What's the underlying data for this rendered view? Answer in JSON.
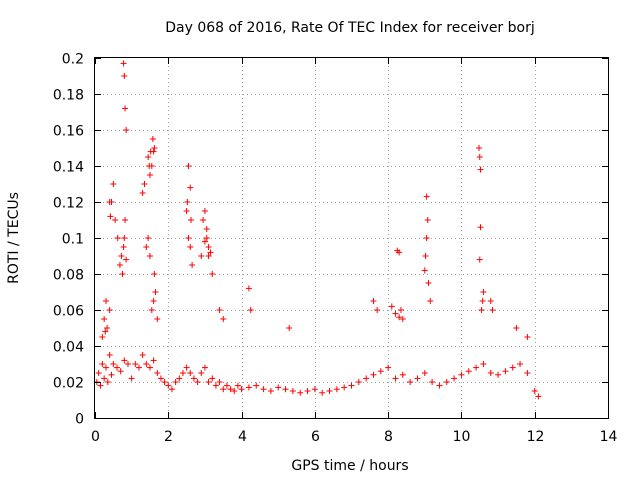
{
  "chart_data": {
    "type": "scatter",
    "title": "Day 068 of 2016, Rate Of TEC Index for receiver borj",
    "xlabel": "GPS time / hours",
    "ylabel": "ROTI / TECUs",
    "xlim": [
      0,
      14
    ],
    "ylim": [
      0,
      0.2
    ],
    "xticks": [
      "0",
      "2",
      "4",
      "6",
      "8",
      "10",
      "12",
      "14"
    ],
    "yticks": [
      "0",
      "0.02",
      "0.04",
      "0.06",
      "0.08",
      "0.1",
      "0.12",
      "0.14",
      "0.16",
      "0.18",
      "0.2"
    ],
    "grid": true,
    "marker": "+",
    "color": "#ff0000",
    "series": [
      {
        "name": "ROTI",
        "x": [
          0.05,
          0.1,
          0.15,
          0.2,
          0.25,
          0.3,
          0.35,
          0.4,
          0.45,
          0.5,
          0.6,
          0.7,
          0.8,
          0.9,
          1.0,
          1.1,
          1.2,
          1.3,
          1.4,
          1.5,
          1.6,
          1.7,
          1.8,
          1.9,
          2.0,
          2.1,
          2.2,
          2.3,
          2.4,
          2.5,
          2.6,
          2.7,
          2.8,
          2.9,
          3.0,
          3.1,
          3.2,
          3.3,
          3.4,
          3.5,
          3.6,
          3.7,
          3.8,
          3.9,
          4.0,
          4.2,
          4.4,
          4.6,
          4.8,
          5.0,
          5.2,
          5.4,
          5.6,
          5.8,
          6.0,
          6.2,
          6.4,
          6.6,
          6.8,
          7.0,
          7.2,
          7.4,
          7.6,
          7.8,
          8.0,
          8.2,
          8.4,
          8.6,
          8.8,
          9.0,
          9.2,
          9.4,
          9.6,
          9.8,
          10.0,
          10.2,
          10.4,
          10.6,
          10.8,
          11.0,
          11.2,
          11.4,
          11.6,
          11.8,
          12.0,
          12.1,
          0.2,
          0.25,
          0.28,
          0.3,
          0.33,
          0.4,
          0.45,
          0.5,
          0.55,
          0.62,
          0.68,
          0.72,
          0.75,
          0.78,
          0.8,
          0.82,
          0.85,
          1.3,
          1.35,
          1.4,
          1.45,
          1.5,
          1.55,
          1.6,
          1.62,
          1.65,
          1.7,
          2.5,
          2.52,
          2.55,
          2.6,
          2.65,
          2.9,
          2.95,
          3.0,
          3.05,
          3.1,
          3.2,
          3.4,
          3.5,
          4.2,
          4.25,
          5.3,
          7.6,
          7.7,
          8.1,
          8.2,
          8.3,
          8.35,
          8.4,
          9.0,
          9.02,
          9.05,
          9.08,
          9.1,
          9.15,
          10.5,
          10.52,
          10.55,
          10.58,
          10.6,
          10.8,
          10.85,
          11.5,
          11.8,
          1.58,
          1.6,
          1.62,
          1.55,
          1.5,
          2.55,
          2.6,
          2.62,
          3.05,
          3.1,
          10.48,
          10.5,
          10.52,
          0.78,
          0.8,
          0.82,
          0.85,
          0.4,
          0.42,
          1.45,
          1.48,
          1.52,
          3.0,
          3.15,
          8.25,
          8.3,
          9.05
        ],
        "y": [
          0.02,
          0.025,
          0.018,
          0.03,
          0.022,
          0.028,
          0.02,
          0.035,
          0.024,
          0.03,
          0.028,
          0.026,
          0.032,
          0.03,
          0.022,
          0.03,
          0.028,
          0.035,
          0.03,
          0.028,
          0.032,
          0.025,
          0.022,
          0.02,
          0.018,
          0.016,
          0.02,
          0.022,
          0.025,
          0.028,
          0.025,
          0.022,
          0.02,
          0.025,
          0.028,
          0.02,
          0.022,
          0.018,
          0.02,
          0.016,
          0.018,
          0.016,
          0.015,
          0.018,
          0.016,
          0.017,
          0.018,
          0.016,
          0.015,
          0.017,
          0.016,
          0.015,
          0.014,
          0.015,
          0.016,
          0.014,
          0.015,
          0.016,
          0.017,
          0.018,
          0.02,
          0.022,
          0.024,
          0.026,
          0.028,
          0.022,
          0.024,
          0.02,
          0.022,
          0.025,
          0.02,
          0.018,
          0.02,
          0.022,
          0.024,
          0.026,
          0.028,
          0.03,
          0.025,
          0.024,
          0.026,
          0.028,
          0.03,
          0.025,
          0.015,
          0.012,
          0.045,
          0.055,
          0.048,
          0.065,
          0.05,
          0.06,
          0.12,
          0.13,
          0.11,
          0.1,
          0.085,
          0.09,
          0.08,
          0.095,
          0.1,
          0.11,
          0.088,
          0.125,
          0.13,
          0.095,
          0.1,
          0.09,
          0.06,
          0.065,
          0.08,
          0.07,
          0.055,
          0.115,
          0.12,
          0.1,
          0.095,
          0.085,
          0.09,
          0.11,
          0.115,
          0.1,
          0.09,
          0.08,
          0.06,
          0.055,
          0.072,
          0.06,
          0.05,
          0.065,
          0.06,
          0.062,
          0.058,
          0.056,
          0.06,
          0.055,
          0.082,
          0.09,
          0.1,
          0.11,
          0.075,
          0.065,
          0.088,
          0.106,
          0.06,
          0.065,
          0.07,
          0.065,
          0.06,
          0.05,
          0.045,
          0.155,
          0.148,
          0.15,
          0.14,
          0.135,
          0.14,
          0.128,
          0.11,
          0.105,
          0.095,
          0.15,
          0.145,
          0.138,
          0.197,
          0.19,
          0.172,
          0.16,
          0.12,
          0.112,
          0.145,
          0.14,
          0.148,
          0.098,
          0.092,
          0.093,
          0.092,
          0.123
        ]
      }
    ]
  }
}
